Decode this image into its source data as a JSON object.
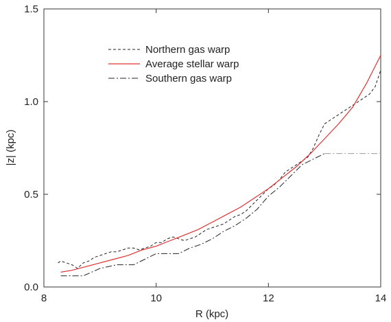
{
  "chart_data": {
    "type": "line",
    "title": "",
    "xlabel": "R (kpc)",
    "ylabel": "|z| (kpc)",
    "xlim": [
      8,
      14
    ],
    "ylim": [
      0,
      1.5
    ],
    "xticks": [
      8,
      10,
      12,
      14
    ],
    "xtick_labels": [
      "8",
      "10",
      "12",
      "14"
    ],
    "yticks": [
      0,
      0.5,
      1.0,
      1.5
    ],
    "ytick_labels": [
      "0.0",
      "0.5",
      "1.0",
      "1.5"
    ],
    "grid": false,
    "legend_position": "top-left",
    "series": [
      {
        "name": "Northern gas warp",
        "style": "dashed",
        "color": "#222222",
        "x": [
          8.25,
          8.3,
          8.4,
          8.5,
          8.55,
          8.6,
          8.7,
          8.8,
          8.9,
          9.0,
          9.1,
          9.2,
          9.3,
          9.4,
          9.5,
          9.6,
          9.7,
          9.8,
          9.9,
          10.0,
          10.1,
          10.2,
          10.3,
          10.4,
          10.5,
          10.6,
          10.7,
          10.8,
          10.9,
          11.0,
          11.1,
          11.2,
          11.3,
          11.4,
          11.5,
          11.6,
          11.7,
          11.8,
          11.9,
          12.0,
          12.1,
          12.2,
          12.3,
          12.4,
          12.5,
          12.6,
          12.7,
          12.8,
          12.9,
          13.0,
          13.1,
          13.2,
          13.3,
          13.4,
          13.5,
          13.6,
          13.7,
          13.8,
          13.9,
          14.0
        ],
        "y": [
          0.13,
          0.14,
          0.13,
          0.12,
          0.11,
          0.1,
          0.13,
          0.14,
          0.16,
          0.17,
          0.18,
          0.19,
          0.19,
          0.2,
          0.21,
          0.21,
          0.2,
          0.21,
          0.22,
          0.24,
          0.24,
          0.26,
          0.27,
          0.26,
          0.25,
          0.26,
          0.27,
          0.29,
          0.31,
          0.32,
          0.33,
          0.34,
          0.36,
          0.38,
          0.39,
          0.41,
          0.44,
          0.47,
          0.5,
          0.53,
          0.55,
          0.58,
          0.62,
          0.64,
          0.66,
          0.68,
          0.7,
          0.75,
          0.82,
          0.88,
          0.9,
          0.92,
          0.94,
          0.96,
          0.98,
          1.0,
          1.02,
          1.04,
          1.08,
          1.17
        ]
      },
      {
        "name": "Average stellar warp",
        "style": "solid",
        "color": "#e03030",
        "x": [
          8.3,
          8.5,
          8.75,
          9.0,
          9.25,
          9.5,
          9.75,
          10.0,
          10.25,
          10.5,
          10.75,
          11.0,
          11.25,
          11.5,
          11.75,
          12.0,
          12.25,
          12.5,
          12.75,
          13.0,
          13.25,
          13.5,
          13.75,
          14.0
        ],
        "y": [
          0.08,
          0.09,
          0.11,
          0.13,
          0.15,
          0.17,
          0.2,
          0.22,
          0.25,
          0.28,
          0.31,
          0.35,
          0.39,
          0.43,
          0.48,
          0.53,
          0.59,
          0.65,
          0.72,
          0.8,
          0.88,
          0.97,
          1.1,
          1.25
        ]
      },
      {
        "name": "Southern gas warp",
        "style": "dashdot",
        "color": "#222222",
        "x": [
          8.3,
          8.5,
          8.7,
          9.0,
          9.3,
          9.6,
          9.8,
          10.0,
          10.2,
          10.4,
          10.6,
          10.8,
          11.0,
          11.2,
          11.4,
          11.6,
          11.8,
          12.0,
          12.2,
          12.4,
          12.6,
          12.8,
          13.0
        ],
        "y": [
          0.06,
          0.06,
          0.06,
          0.1,
          0.12,
          0.12,
          0.15,
          0.18,
          0.18,
          0.18,
          0.21,
          0.23,
          0.26,
          0.3,
          0.33,
          0.37,
          0.42,
          0.49,
          0.54,
          0.6,
          0.66,
          0.69,
          0.72
        ]
      },
      {
        "name": "",
        "style": "dashdot",
        "color": "#9a9a9a",
        "x": [
          13.0,
          13.5,
          14.0
        ],
        "y": [
          0.72,
          0.72,
          0.72
        ]
      }
    ]
  }
}
